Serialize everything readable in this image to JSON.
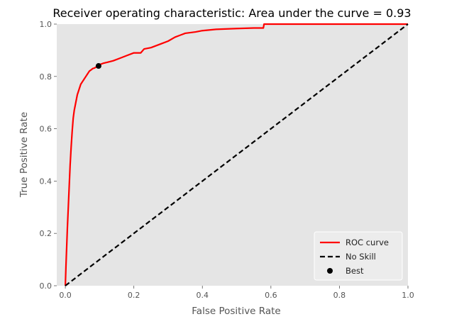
{
  "chart_data": {
    "type": "line",
    "title": "Receiver operating characteristic: Area under the curve = 0.93",
    "xlabel": "False Positive Rate",
    "ylabel": "True Positive Rate",
    "xlim": [
      -0.025,
      1.0
    ],
    "ylim": [
      0.0,
      1.0
    ],
    "x_ticks": [
      "0.0",
      "0.2",
      "0.4",
      "0.6",
      "0.8",
      "1.0"
    ],
    "y_ticks": [
      "0.0",
      "0.2",
      "0.4",
      "0.6",
      "0.8",
      "1.0"
    ],
    "grid": false,
    "background_color": "#e5e5e5",
    "legend": {
      "placement": "lower-right",
      "entries": [
        "ROC curve",
        "No Skill",
        "Best"
      ]
    },
    "series": [
      {
        "name": "ROC curve",
        "style": "solid",
        "color": "#ff0000",
        "x": [
          0.0,
          0.002,
          0.004,
          0.006,
          0.008,
          0.01,
          0.012,
          0.014,
          0.017,
          0.02,
          0.023,
          0.026,
          0.029,
          0.032,
          0.035,
          0.04,
          0.045,
          0.05,
          0.055,
          0.06,
          0.065,
          0.07,
          0.075,
          0.08,
          0.085,
          0.09,
          0.095,
          0.1,
          0.11,
          0.125,
          0.14,
          0.16,
          0.18,
          0.2,
          0.22,
          0.23,
          0.25,
          0.28,
          0.3,
          0.32,
          0.35,
          0.38,
          0.4,
          0.44,
          0.5,
          0.55,
          0.578,
          0.58,
          0.7,
          0.8,
          0.9,
          1.0
        ],
        "y": [
          0.0,
          0.08,
          0.15,
          0.22,
          0.28,
          0.34,
          0.4,
          0.46,
          0.53,
          0.59,
          0.64,
          0.67,
          0.69,
          0.71,
          0.73,
          0.75,
          0.77,
          0.78,
          0.79,
          0.8,
          0.81,
          0.82,
          0.825,
          0.83,
          0.832,
          0.836,
          0.84,
          0.845,
          0.85,
          0.855,
          0.86,
          0.87,
          0.88,
          0.89,
          0.89,
          0.905,
          0.91,
          0.925,
          0.935,
          0.95,
          0.965,
          0.97,
          0.975,
          0.98,
          0.983,
          0.985,
          0.985,
          1.0,
          1.0,
          1.0,
          1.0,
          1.0
        ]
      },
      {
        "name": "No Skill",
        "style": "dashed",
        "color": "#000000",
        "x": [
          0.0,
          1.0
        ],
        "y": [
          0.0,
          1.0
        ]
      },
      {
        "name": "Best",
        "style": "point",
        "color": "#000000",
        "x": [
          0.097
        ],
        "y": [
          0.84
        ]
      }
    ]
  }
}
